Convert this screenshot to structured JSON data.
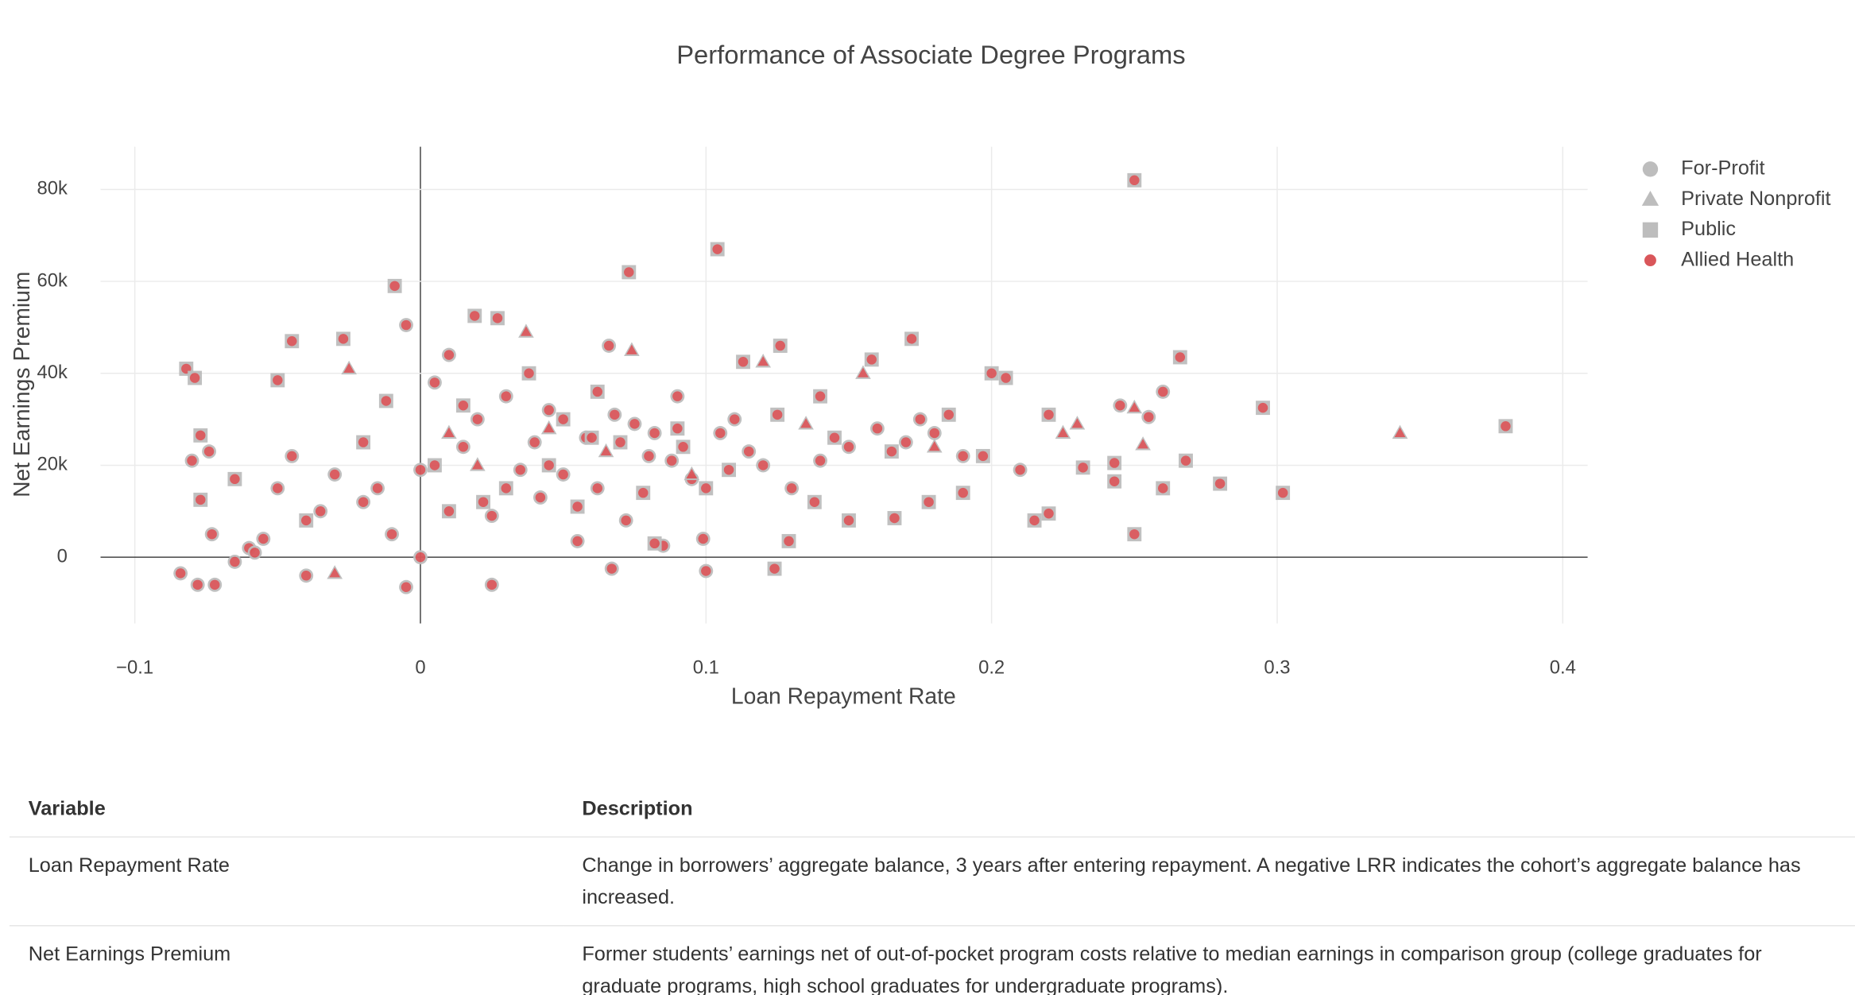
{
  "chart_data": {
    "type": "scatter",
    "title": "Performance of Associate Degree Programs",
    "x_label": "Loan Repayment Rate",
    "y_label": "Net Earnings Premium",
    "xlim": [
      -0.112,
      0.4087
    ],
    "ylim": [
      -14400,
      89300
    ],
    "xticks": [
      {
        "value": -0.1,
        "label": "−0.1"
      },
      0,
      0.1,
      0.2,
      0.3,
      0.4
    ],
    "yticks": [
      0,
      {
        "value": 20000,
        "label": "20k"
      },
      {
        "value": 40000,
        "label": "40k"
      },
      {
        "value": 60000,
        "label": "60k"
      },
      {
        "value": 80000,
        "label": "80k"
      }
    ],
    "grid": true,
    "legend": "top-right",
    "highlight": {
      "name": "Allied Health",
      "color": "#d9565a"
    },
    "series": [
      {
        "name": "For-Profit",
        "symbol": "circle",
        "color": "#bdbdbd",
        "x": [
          -0.005,
          -0.084,
          -0.078,
          -0.072,
          -0.08,
          -0.074,
          -0.073,
          -0.005,
          0.025,
          -0.04,
          0.1,
          0.067,
          0.066,
          0.099,
          0.085,
          0.055,
          0.0,
          -0.06,
          -0.055,
          -0.05,
          -0.035,
          0.02,
          0.04,
          0.05,
          0.08,
          0.09,
          0.12,
          0.15,
          0.16,
          0.17,
          0.18,
          0.005,
          0.01,
          0.03,
          0.062,
          0.072,
          0.11,
          0.13,
          -0.015,
          0.245,
          0.26,
          0.255,
          -0.065,
          -0.045,
          -0.02,
          0.015,
          0.035,
          0.045,
          0.058,
          0.075,
          0.088,
          0.095,
          0.105,
          0.115,
          0.14,
          0.175,
          0.19,
          0.21,
          -0.01,
          0.0,
          0.025,
          0.042,
          0.068,
          0.082,
          -0.03,
          -0.058
        ],
        "y": [
          50500,
          -3500,
          -6000,
          -6000,
          21000,
          23000,
          5000,
          -6500,
          -6000,
          -4000,
          -3000,
          -2500,
          46000,
          4000,
          2500,
          3500,
          0,
          2000,
          4000,
          15000,
          10000,
          30000,
          25000,
          18000,
          22000,
          35000,
          20000,
          24000,
          28000,
          25000,
          27000,
          38000,
          44000,
          35000,
          15000,
          8000,
          30000,
          15000,
          15000,
          33000,
          36000,
          30500,
          -1000,
          22000,
          12000,
          24000,
          19000,
          32000,
          26000,
          29000,
          21000,
          17000,
          27000,
          23000,
          21000,
          30000,
          22000,
          19000,
          5000,
          19000,
          9000,
          13000,
          31000,
          27000,
          18000,
          1000
        ]
      },
      {
        "name": "Private Nonprofit",
        "symbol": "triangle",
        "color": "#bdbdbd",
        "x": [
          0.343,
          0.253,
          0.25,
          0.23,
          0.225,
          -0.025,
          0.037,
          0.074,
          0.18,
          0.12,
          0.135,
          0.155,
          -0.03,
          0.045,
          0.02,
          0.095,
          0.065,
          0.01
        ],
        "y": [
          27000,
          24500,
          32500,
          29000,
          27000,
          41000,
          49000,
          45000,
          24000,
          42500,
          29000,
          40000,
          -3500,
          28000,
          20000,
          18000,
          23000,
          27000
        ]
      },
      {
        "name": "Public",
        "symbol": "square",
        "color": "#bdbdbd",
        "x": [
          0.25,
          0.104,
          0.073,
          -0.009,
          0.38,
          0.302,
          0.295,
          0.266,
          0.25,
          0.28,
          0.268,
          0.26,
          0.243,
          0.243,
          0.232,
          0.22,
          0.215,
          0.22,
          0.2,
          0.205,
          -0.082,
          -0.079,
          -0.045,
          -0.027,
          -0.077,
          -0.077,
          0.019,
          0.027,
          0.172,
          0.158,
          0.126,
          0.124,
          0.129,
          0.082,
          0.15,
          0.166,
          0.178,
          0.06,
          0.09,
          0.045,
          0.03,
          0.01,
          -0.02,
          -0.05,
          0.14,
          0.113,
          0.1,
          0.07,
          0.05,
          0.185,
          0.197,
          0.19,
          0.138,
          -0.065,
          -0.04,
          0.005,
          0.015,
          0.055,
          0.078,
          0.092,
          0.108,
          0.125,
          0.145,
          0.165,
          0.038,
          0.022,
          -0.012,
          0.062
        ],
        "y": [
          82000,
          67000,
          62000,
          59000,
          28500,
          14000,
          32500,
          43500,
          5000,
          16000,
          21000,
          15000,
          16500,
          20500,
          19500,
          9500,
          8000,
          31000,
          40000,
          39000,
          41000,
          39000,
          47000,
          47500,
          26500,
          12500,
          52500,
          52000,
          47500,
          43000,
          46000,
          -2500,
          3500,
          3000,
          8000,
          8500,
          12000,
          26000,
          28000,
          20000,
          15000,
          10000,
          25000,
          38500,
          35000,
          42500,
          15000,
          25000,
          30000,
          31000,
          22000,
          14000,
          12000,
          17000,
          8000,
          20000,
          33000,
          11000,
          14000,
          24000,
          19000,
          31000,
          26000,
          23000,
          40000,
          12000,
          34000,
          36000
        ]
      }
    ]
  },
  "table": {
    "header": [
      "Variable",
      "Description"
    ],
    "rows": [
      [
        "Loan Repayment Rate",
        "Change in borrowers’ aggregate balance, 3 years after entering repayment. A negative LRR indicates the cohort’s aggregate balance has increased."
      ],
      [
        "Net Earnings Premium",
        "Former students’ earnings net of out-of-pocket program costs relative to median earnings in comparison group (college graduates for graduate programs, high school graduates for undergraduate programs)."
      ]
    ]
  }
}
